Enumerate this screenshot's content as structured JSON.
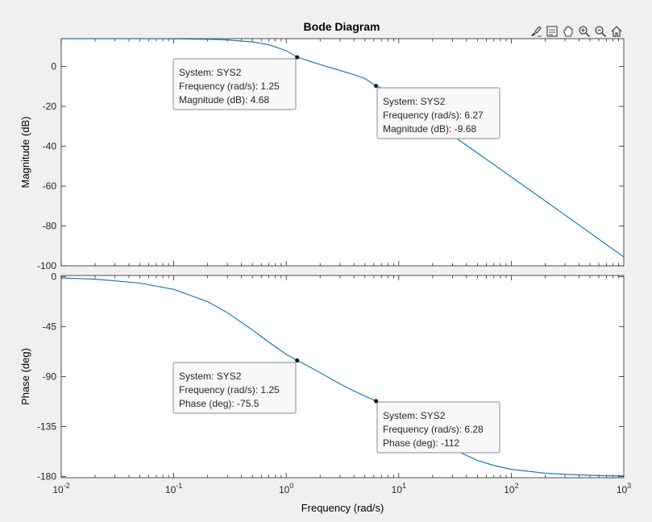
{
  "title": "Bode Diagram",
  "toolbar": {
    "buttons": [
      {
        "name": "brush-icon",
        "label": "Brush"
      },
      {
        "name": "datatip-icon",
        "label": "Data Tips"
      },
      {
        "name": "pan-icon",
        "label": "Pan"
      },
      {
        "name": "zoom-in-icon",
        "label": "Zoom In"
      },
      {
        "name": "zoom-out-icon",
        "label": "Zoom Out"
      },
      {
        "name": "home-icon",
        "label": "Restore View"
      }
    ]
  },
  "chart_data": [
    {
      "type": "line",
      "title": "Bode Diagram",
      "ylabel": "Magnitude (dB)",
      "xscale": "log",
      "xlim": [
        0.01,
        1000
      ],
      "ylim": [
        -100,
        14
      ],
      "yticks": [
        0,
        -20,
        -40,
        -60,
        -80,
        -100
      ],
      "ytick_labels": [
        "0",
        "-20",
        "-40",
        "-60",
        "-80",
        "-100"
      ],
      "grid": false,
      "series": [
        {
          "color": "#0072bd",
          "x": [
            0.01,
            0.02,
            0.05,
            0.1,
            0.2,
            0.3,
            0.5,
            0.7,
            1.0,
            1.25,
            1.5,
            2,
            3,
            4,
            5,
            6.27,
            8,
            10,
            15,
            20,
            30,
            50,
            70,
            100,
            200,
            300,
            500,
            700,
            1000
          ],
          "y": [
            13.98,
            13.98,
            13.97,
            13.93,
            13.72,
            13.38,
            12.36,
            10.99,
            7.96,
            4.68,
            3.3,
            1.0,
            -1.93,
            -4.08,
            -6.02,
            -9.68,
            -12.0,
            -15.5,
            -22.3,
            -27.4,
            -34.6,
            -43.4,
            -49.2,
            -55.4,
            -67.4,
            -74.5,
            -83.4,
            -89.3,
            -95.5
          ]
        }
      ],
      "datatips": [
        {
          "x": 1.25,
          "y": 4.68,
          "lines": [
            "System: SYS2",
            "Frequency (rad/s): 1.25",
            "Magnitude (dB): 4.68"
          ]
        },
        {
          "x": 6.27,
          "y": -9.68,
          "lines": [
            "System: SYS2",
            "Frequency (rad/s): 6.27",
            "Magnitude (dB): -9.68"
          ]
        }
      ]
    },
    {
      "type": "line",
      "xlabel": "Frequency  (rad/s)",
      "ylabel": "Phase (deg)",
      "xscale": "log",
      "xlim": [
        0.01,
        1000
      ],
      "ylim": [
        -181,
        1
      ],
      "yticks": [
        0,
        -45,
        -90,
        -135,
        -180
      ],
      "ytick_labels": [
        "0",
        "-45",
        "-90",
        "-135",
        "-180"
      ],
      "xticks": [
        0.01,
        0.1,
        1,
        10,
        100,
        1000
      ],
      "xtick_labels": [
        {
          "base": "10",
          "exp": "-2"
        },
        {
          "base": "10",
          "exp": "-1"
        },
        {
          "base": "10",
          "exp": "0"
        },
        {
          "base": "10",
          "exp": "1"
        },
        {
          "base": "10",
          "exp": "2"
        },
        {
          "base": "10",
          "exp": "3"
        }
      ],
      "grid": false,
      "series": [
        {
          "color": "#0072bd",
          "x": [
            0.01,
            0.02,
            0.05,
            0.1,
            0.2,
            0.3,
            0.5,
            0.7,
            1.0,
            1.25,
            1.5,
            2,
            3,
            4,
            5,
            6.28,
            8,
            10,
            15,
            20,
            30,
            50,
            70,
            100,
            200,
            300,
            500,
            700,
            1000
          ],
          "y": [
            -1.2,
            -2.3,
            -5.8,
            -11.5,
            -22.5,
            -32.5,
            -48.0,
            -59.0,
            -70.0,
            -75.5,
            -79.5,
            -86.5,
            -96.5,
            -103.0,
            -107.5,
            -112.0,
            -118.0,
            -124.0,
            -135.0,
            -143.5,
            -155.0,
            -165.5,
            -170.0,
            -173.5,
            -177.0,
            -178.0,
            -178.8,
            -179.2,
            -179.4
          ]
        }
      ],
      "datatips": [
        {
          "x": 1.25,
          "y": -75.5,
          "lines": [
            "System: SYS2",
            "Frequency (rad/s): 1.25",
            "Phase (deg): -75.5"
          ]
        },
        {
          "x": 6.28,
          "y": -112,
          "lines": [
            "System: SYS2",
            "Frequency (rad/s): 6.28",
            "Phase (deg): -112"
          ]
        }
      ]
    }
  ]
}
